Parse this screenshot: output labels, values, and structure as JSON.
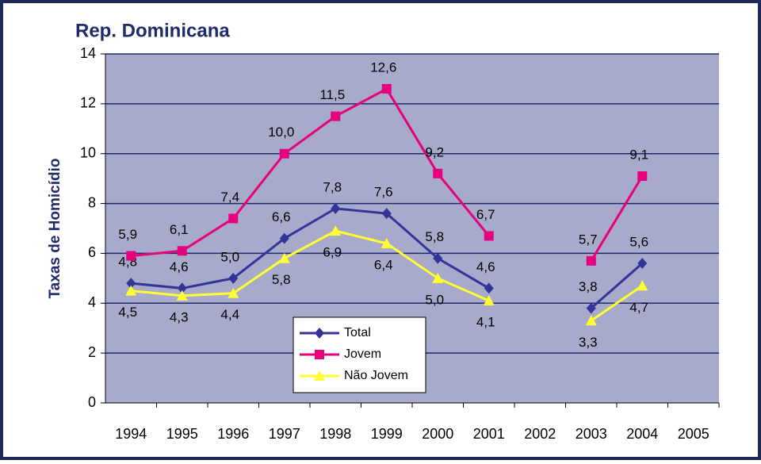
{
  "chart_data": {
    "type": "line",
    "title": "Rep. Dominicana",
    "y_label": "Taxas de Homicídio",
    "categories": [
      "1994",
      "1995",
      "1996",
      "1997",
      "1998",
      "1999",
      "2000",
      "2001",
      "2002",
      "2003",
      "2004",
      "2005"
    ],
    "ylim": [
      0,
      14
    ],
    "yticks": [
      0,
      2,
      4,
      6,
      8,
      10,
      12,
      14
    ],
    "grid": true,
    "series": [
      {
        "name": "Total",
        "color": "#333399",
        "marker": "diamond",
        "values": [
          4.8,
          4.6,
          5.0,
          6.6,
          7.8,
          7.6,
          5.8,
          4.6,
          null,
          3.8,
          5.6,
          null
        ],
        "value_labels": [
          "4,8",
          "4,6",
          "5,0",
          "6,6",
          "7,8",
          "7,6",
          "5,8",
          "4,6",
          null,
          "3,8",
          "5,6",
          null
        ]
      },
      {
        "name": "Jovem",
        "color": "#e6007e",
        "marker": "square",
        "values": [
          5.9,
          6.1,
          7.4,
          10.0,
          11.5,
          12.6,
          9.2,
          6.7,
          null,
          5.7,
          9.1,
          null
        ],
        "value_labels": [
          "5,9",
          "6,1",
          "7,4",
          "10,0",
          "11,5",
          "12,6",
          "9,2",
          "6,7",
          null,
          "5,7",
          "9,1",
          null
        ]
      },
      {
        "name": "Não Jovem",
        "color": "#ffff33",
        "marker": "triangle",
        "values": [
          4.5,
          4.3,
          4.4,
          5.8,
          6.9,
          6.4,
          5.0,
          4.1,
          null,
          3.3,
          4.7,
          null
        ],
        "value_labels": [
          "4,5",
          "4,3",
          "4,4",
          "5,8",
          "6,9",
          "6,4",
          "5,0",
          "4,1",
          null,
          "3,3",
          "4,7",
          null
        ]
      }
    ]
  }
}
